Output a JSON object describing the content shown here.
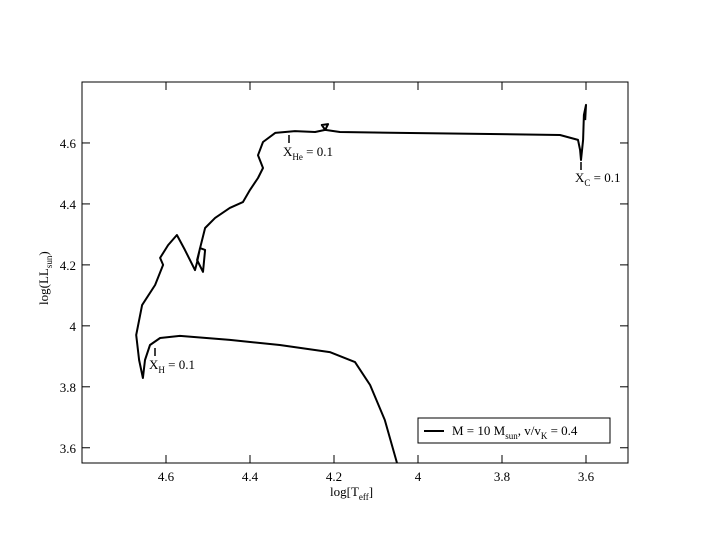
{
  "chart_data": {
    "type": "line",
    "x_label": [
      "log[T",
      "eff",
      "]"
    ],
    "y_label": [
      "log(LL",
      "sun",
      ")"
    ],
    "xlim": [
      4.8,
      3.5
    ],
    "ylim": [
      3.55,
      4.8
    ],
    "xticks": [
      4.6,
      4.4,
      4.2,
      4.0,
      3.8,
      3.6
    ],
    "yticks": [
      3.6,
      3.8,
      4.0,
      4.2,
      4.4,
      4.6
    ],
    "legend_position": "lower right",
    "series": [
      {
        "name": [
          "M = 10 M",
          "sun",
          ", v/v",
          "K",
          " = 0.4"
        ],
        "color": "#000000",
        "x": [
          4.05,
          4.079,
          4.114,
          4.15,
          4.21,
          4.329,
          4.448,
          4.567,
          4.614,
          4.638,
          4.65,
          4.655,
          4.664,
          4.671,
          4.657,
          4.626,
          4.607,
          4.614,
          4.595,
          4.574,
          4.555,
          4.531,
          4.526,
          4.519,
          4.507,
          4.512,
          4.526,
          4.507,
          4.483,
          4.448,
          4.417,
          4.4,
          4.381,
          4.369,
          4.381,
          4.369,
          4.34,
          4.293,
          4.245,
          4.221,
          4.229,
          4.214,
          4.221,
          4.186,
          4.043,
          3.805,
          3.662,
          3.619,
          3.614,
          3.612,
          3.607,
          3.605,
          3.6,
          3.602
        ],
        "values": [
          3.55,
          3.691,
          3.806,
          3.881,
          3.914,
          3.937,
          3.954,
          3.967,
          3.96,
          3.937,
          3.888,
          3.829,
          3.888,
          3.97,
          4.068,
          4.134,
          4.2,
          4.223,
          4.265,
          4.298,
          4.249,
          4.183,
          4.209,
          4.255,
          4.249,
          4.177,
          4.216,
          4.321,
          4.354,
          4.387,
          4.406,
          4.446,
          4.485,
          4.518,
          4.56,
          4.603,
          4.633,
          4.639,
          4.636,
          4.643,
          4.659,
          4.662,
          4.643,
          4.636,
          4.633,
          4.629,
          4.626,
          4.61,
          4.577,
          4.544,
          4.61,
          4.692,
          4.725,
          4.675
        ]
      }
    ],
    "annotations": [
      [
        "X",
        "H",
        " = 0.1"
      ],
      [
        "X",
        "He",
        " = 0.1"
      ],
      [
        "X",
        "C",
        " = 0.1"
      ]
    ]
  }
}
